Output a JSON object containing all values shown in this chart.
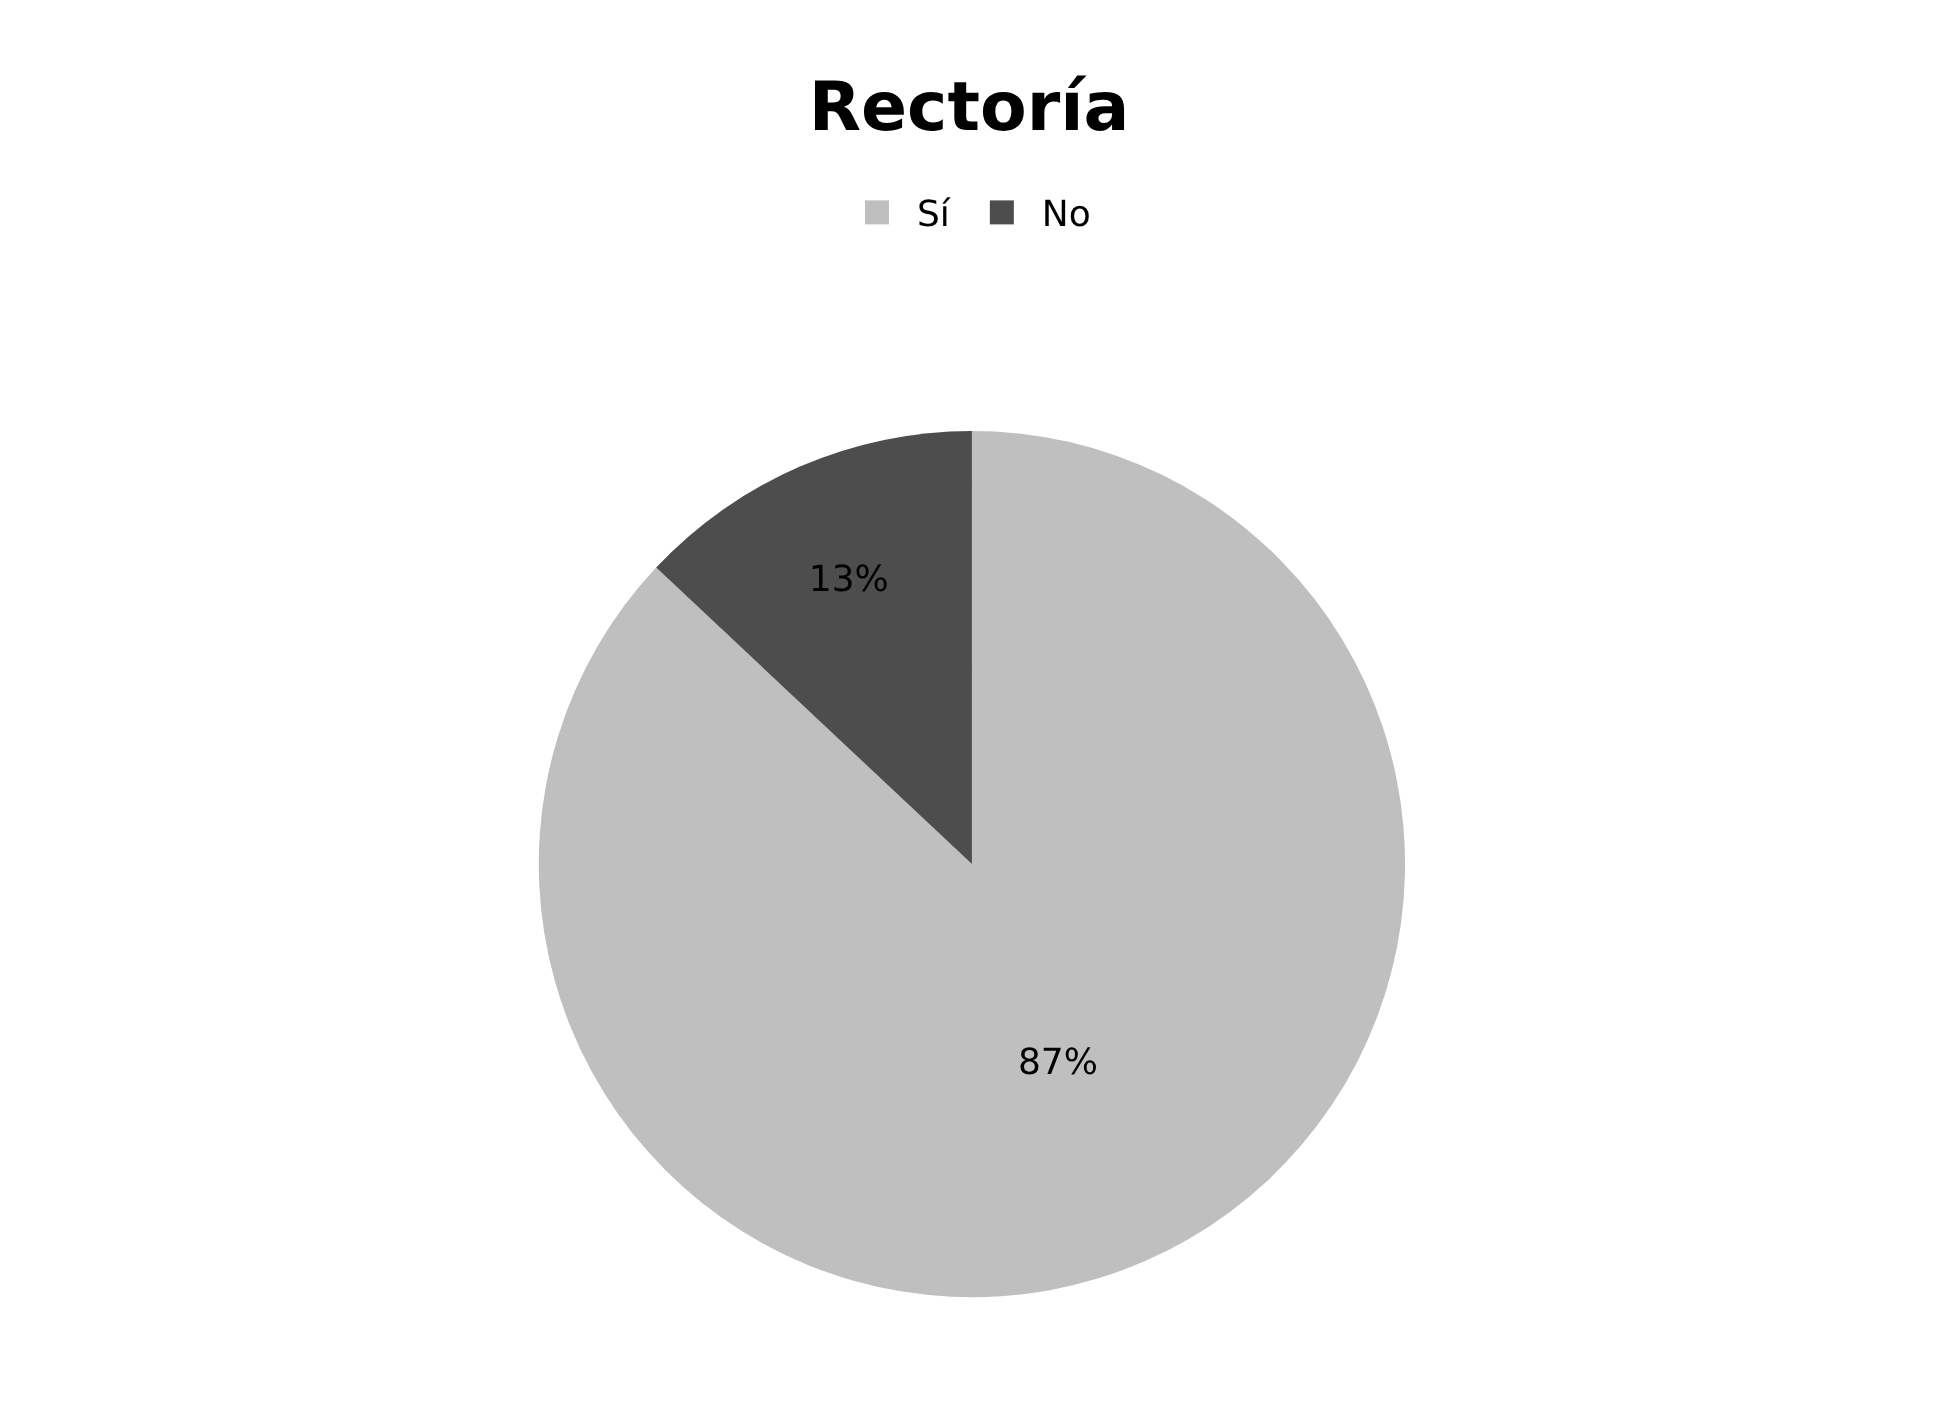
{
  "chart_data": {
    "type": "pie",
    "title": "Rectoría",
    "categories": [
      "Sí",
      "No"
    ],
    "values": [
      87,
      13
    ],
    "colors": [
      "#bfbfbf",
      "#4d4d4d"
    ],
    "value_labels": [
      "87%",
      "13%"
    ],
    "legend": "top"
  }
}
